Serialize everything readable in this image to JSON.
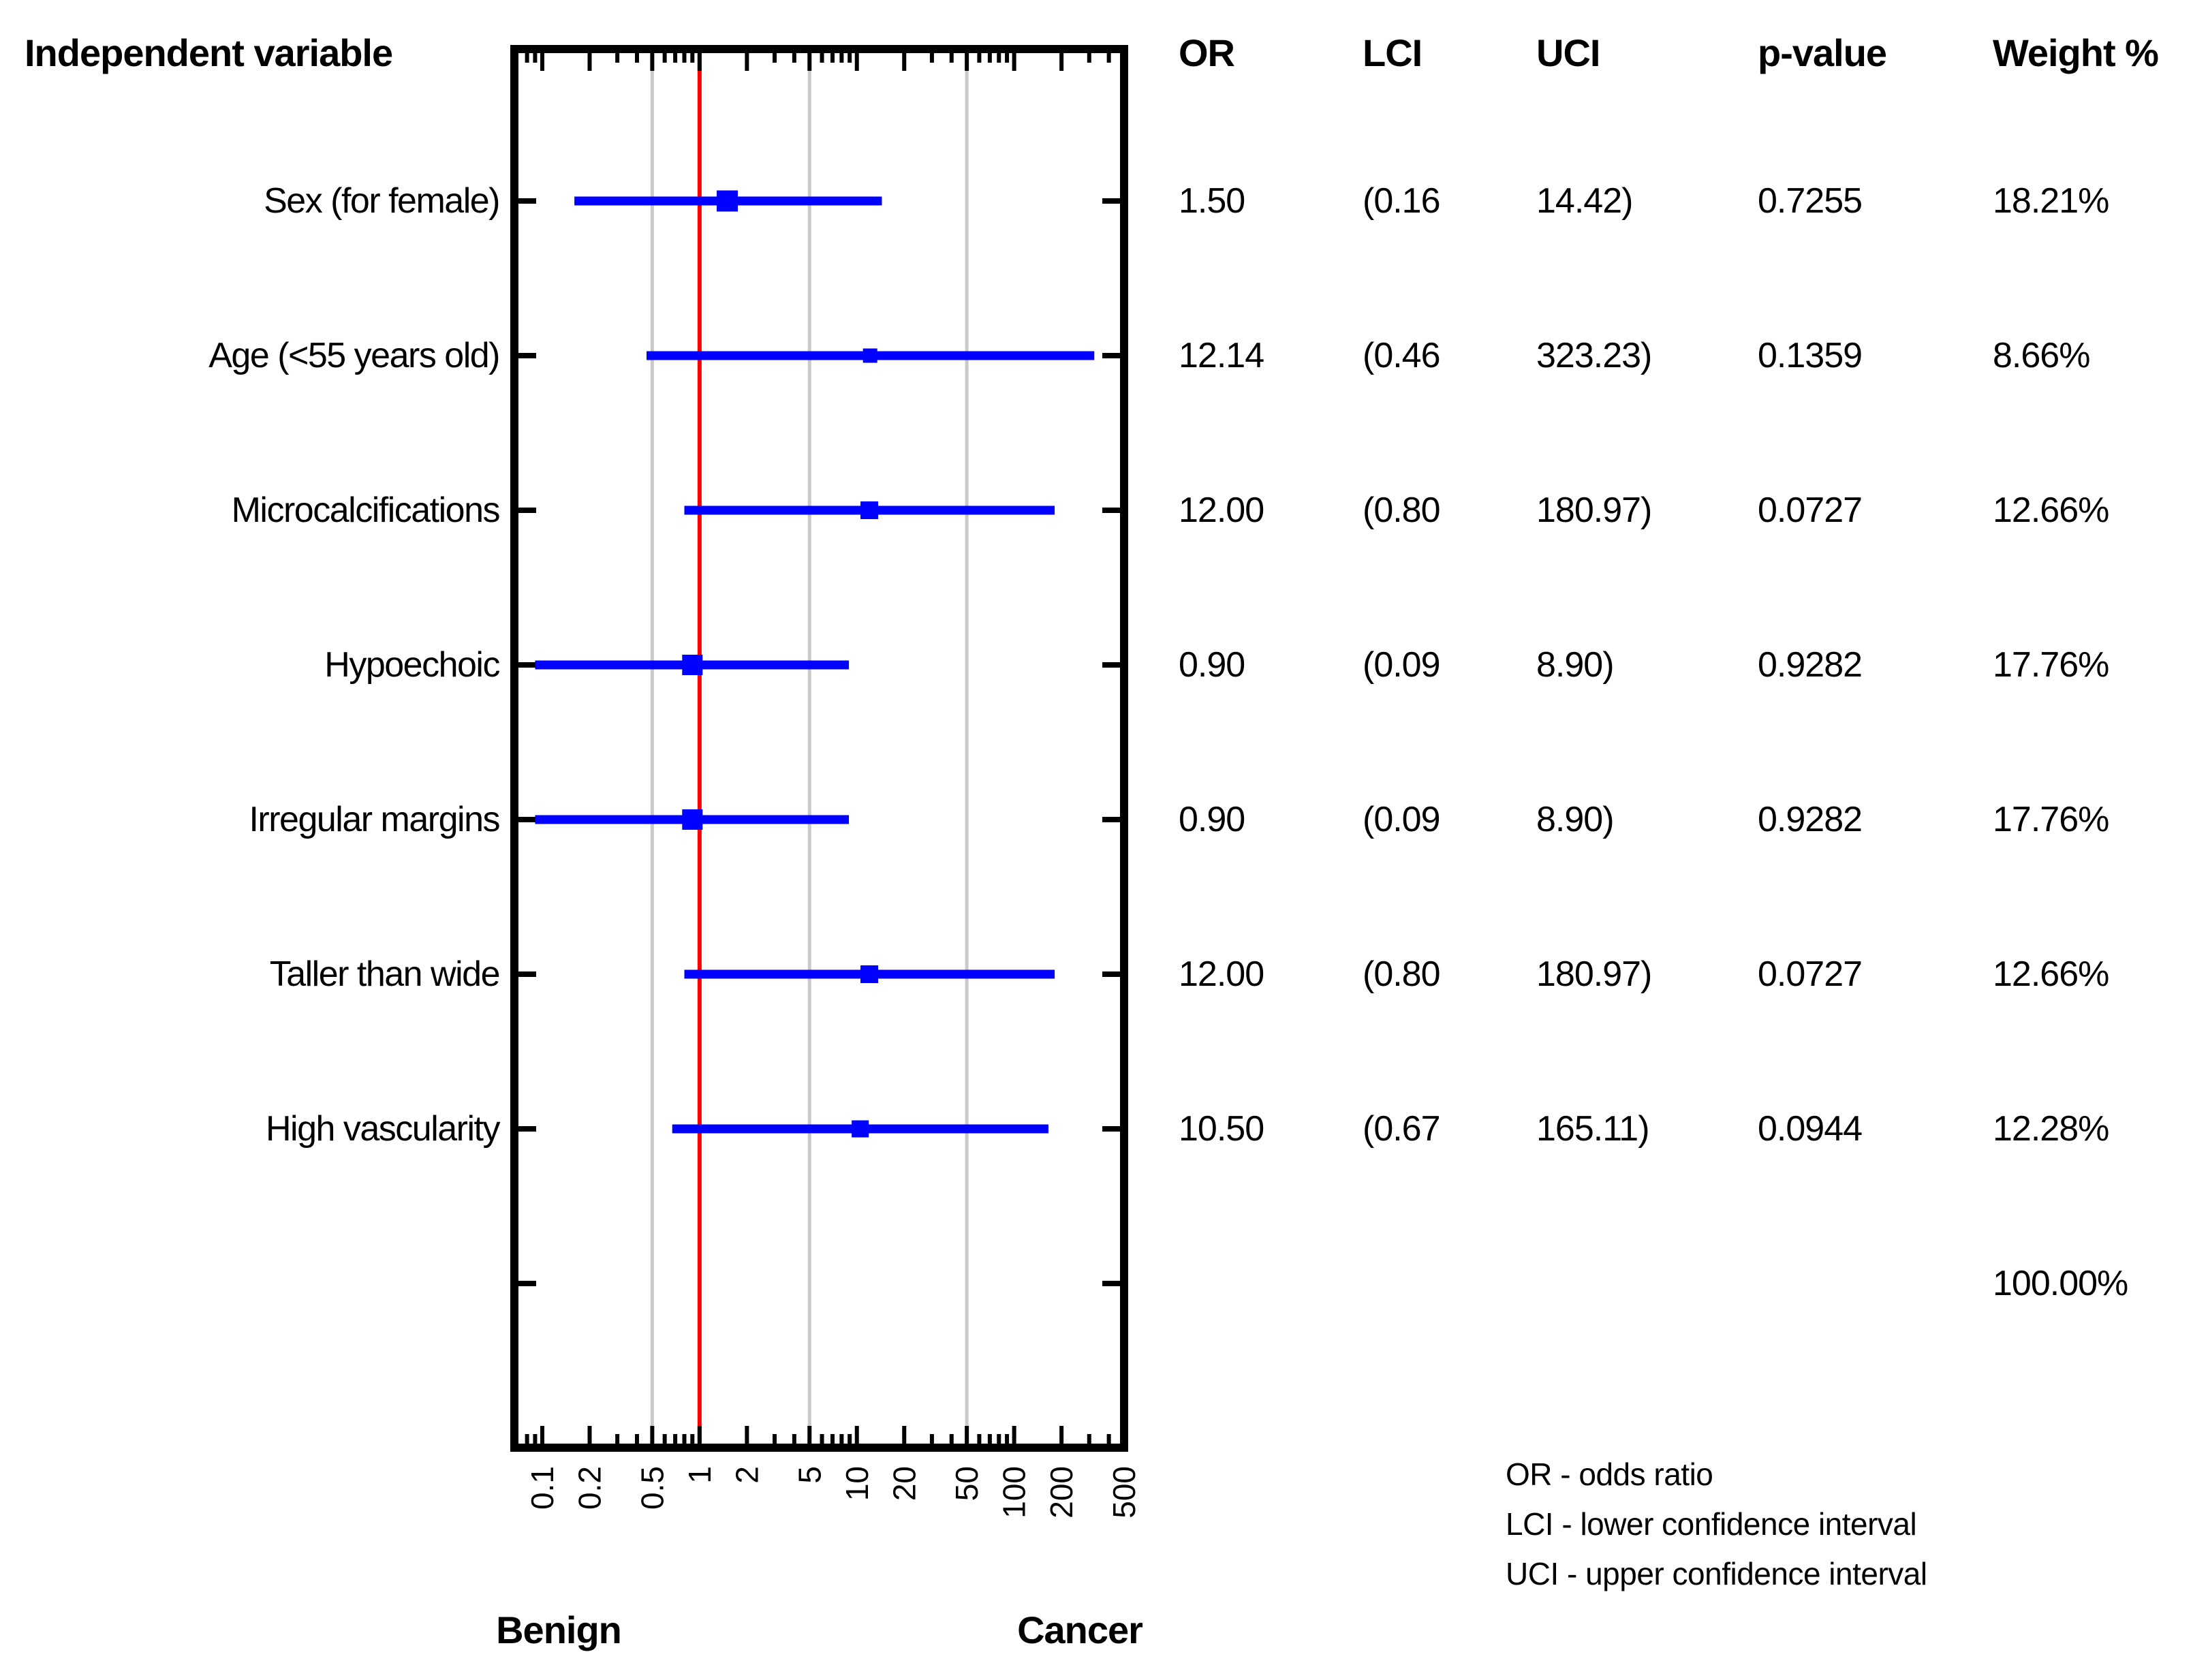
{
  "title": "Independent variable",
  "table": {
    "columns": [
      "OR",
      "LCI",
      "UCI",
      "p-value",
      "Weight %"
    ],
    "rows": [
      {
        "label": "Sex (for female)",
        "or": "1.50",
        "lci": "(0.16",
        "uci": "14.42)",
        "p": "0.7255",
        "weight": "18.21%"
      },
      {
        "label": "Age (<55 years old)",
        "or": "12.14",
        "lci": "(0.46",
        "uci": "323.23)",
        "p": "0.1359",
        "weight": "8.66%"
      },
      {
        "label": "Microcalcifications",
        "or": "12.00",
        "lci": "(0.80",
        "uci": "180.97)",
        "p": "0.0727",
        "weight": "12.66%"
      },
      {
        "label": "Hypoechoic",
        "or": "0.90",
        "lci": "(0.09",
        "uci": "8.90)",
        "p": "0.9282",
        "weight": "17.76%"
      },
      {
        "label": "Irregular margins",
        "or": "0.90",
        "lci": "(0.09",
        "uci": "8.90)",
        "p": "0.9282",
        "weight": "17.76%"
      },
      {
        "label": "Taller than wide",
        "or": "12.00",
        "lci": "(0.80",
        "uci": "180.97)",
        "p": "0.0727",
        "weight": "12.66%"
      },
      {
        "label": "High vascularity",
        "or": "10.50",
        "lci": "(0.67",
        "uci": "165.11)",
        "p": "0.0944",
        "weight": "12.28%"
      }
    ],
    "total_weight": "100.00%"
  },
  "chart_data": {
    "type": "scatter",
    "variant": "forest-plot",
    "scale": "log10",
    "title": "Independent variable",
    "categories": [
      "Sex (for female)",
      "Age (<55 years old)",
      "Microcalcifications",
      "Hypoechoic",
      "Irregular margins",
      "Taller than wide",
      "High vascularity"
    ],
    "series": [
      {
        "name": "OR",
        "values": [
          1.5,
          12.14,
          12.0,
          0.9,
          0.9,
          12.0,
          10.5
        ]
      },
      {
        "name": "LCI",
        "values": [
          0.16,
          0.46,
          0.8,
          0.09,
          0.09,
          0.8,
          0.67
        ]
      },
      {
        "name": "UCI",
        "values": [
          14.42,
          323.23,
          180.97,
          8.9,
          8.9,
          180.97,
          165.11
        ]
      },
      {
        "name": "p-value",
        "values": [
          0.7255,
          0.1359,
          0.0727,
          0.9282,
          0.9282,
          0.0727,
          0.0944
        ]
      },
      {
        "name": "Weight %",
        "values": [
          18.21,
          8.66,
          12.66,
          17.76,
          17.76,
          12.66,
          12.28
        ]
      }
    ],
    "x_tick_labels": [
      "0.1",
      "0.2",
      "0.5",
      "1",
      "2",
      "5",
      "10",
      "20",
      "50",
      "100",
      "200",
      "500"
    ],
    "x_tick_values": [
      0.1,
      0.2,
      0.5,
      1,
      2,
      5,
      10,
      20,
      50,
      100,
      200,
      500
    ],
    "x_range": [
      0.0665,
      500
    ],
    "gridlines": [
      0.5,
      5,
      50
    ],
    "reference_line": 1,
    "axis_end_labels": {
      "left": "Benign",
      "right": "Cancer"
    },
    "grid": "on",
    "legend_position": "bottom-right",
    "marker_color": "#0000ff",
    "reference_color": "#ff0000",
    "gridline_color": "#c9c9c9",
    "frame_color": "#000000"
  },
  "legend": {
    "lines": [
      "OR - odds ratio",
      "LCI - lower confidence interval",
      "UCI - upper confidence interval"
    ]
  }
}
